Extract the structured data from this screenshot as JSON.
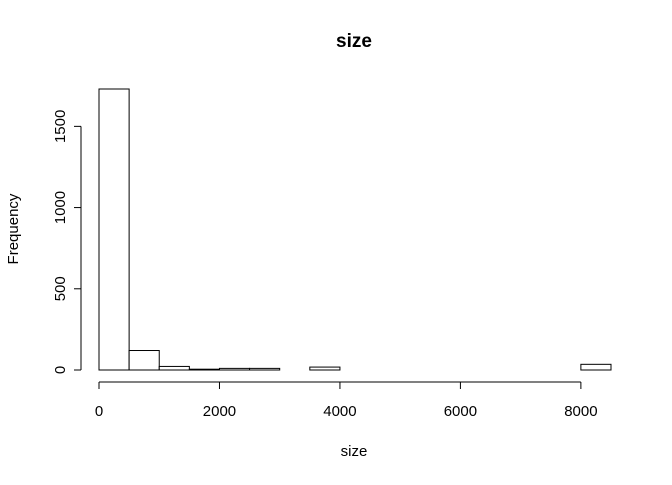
{
  "chart_data": {
    "type": "bar",
    "title": "size",
    "xlabel": "size",
    "ylabel": "Frequency",
    "bin_width": 500,
    "bins": [
      {
        "start": 0,
        "end": 500,
        "count": 1730
      },
      {
        "start": 500,
        "end": 1000,
        "count": 120
      },
      {
        "start": 1000,
        "end": 1500,
        "count": 22
      },
      {
        "start": 1500,
        "end": 2000,
        "count": 5
      },
      {
        "start": 2000,
        "end": 2500,
        "count": 10
      },
      {
        "start": 2500,
        "end": 3000,
        "count": 10
      },
      {
        "start": 3000,
        "end": 3500,
        "count": 0
      },
      {
        "start": 3500,
        "end": 4000,
        "count": 18
      },
      {
        "start": 4000,
        "end": 4500,
        "count": 0
      },
      {
        "start": 4500,
        "end": 5000,
        "count": 0
      },
      {
        "start": 5000,
        "end": 5500,
        "count": 0
      },
      {
        "start": 5500,
        "end": 6000,
        "count": 0
      },
      {
        "start": 6000,
        "end": 6500,
        "count": 0
      },
      {
        "start": 6500,
        "end": 7000,
        "count": 0
      },
      {
        "start": 7000,
        "end": 7500,
        "count": 0
      },
      {
        "start": 7500,
        "end": 8000,
        "count": 0
      },
      {
        "start": 8000,
        "end": 8500,
        "count": 35
      }
    ],
    "x_ticks": [
      0,
      2000,
      4000,
      6000,
      8000
    ],
    "x_tick_labels": [
      "0",
      "2000",
      "4000",
      "6000",
      "8000"
    ],
    "y_ticks": [
      0,
      500,
      1000,
      1500
    ],
    "y_tick_labels": [
      "0",
      "500",
      "1000",
      "1500"
    ],
    "xlim": [
      0,
      8500
    ],
    "ylim": [
      0,
      1730
    ],
    "grid": false,
    "legend": "none",
    "bar_fill": "#ffffff",
    "bar_stroke": "#000000"
  }
}
